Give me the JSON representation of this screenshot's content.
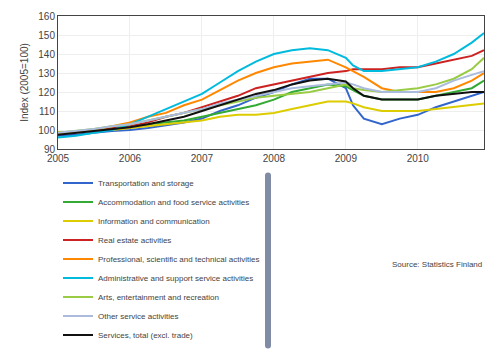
{
  "chart_data": {
    "type": "line",
    "ylabel": "Index (2005=100)",
    "annotation": "Source: Statistics Finland",
    "x": [
      2005.0,
      2005.25,
      2005.5,
      2005.75,
      2006.0,
      2006.25,
      2006.5,
      2006.75,
      2007.0,
      2007.25,
      2007.5,
      2007.75,
      2008.0,
      2008.25,
      2008.5,
      2008.75,
      2009.0,
      2009.1,
      2009.25,
      2009.5,
      2009.75,
      2010.0,
      2010.25,
      2010.5,
      2010.75,
      2010.92
    ],
    "series": [
      {
        "name": "Transportation and storage",
        "color": "#3366CC",
        "values": [
          97,
          97.5,
          98.5,
          99.5,
          100,
          101,
          102.5,
          104,
          106,
          110,
          113,
          117,
          120,
          124,
          127,
          127,
          122,
          113,
          106,
          103,
          106,
          108,
          112,
          115,
          118,
          120
        ]
      },
      {
        "name": "Accommodation and food service activities",
        "color": "#33AA33",
        "values": [
          98,
          99,
          100,
          101,
          102,
          103,
          104,
          105,
          107,
          109,
          111,
          113,
          116,
          120,
          122,
          124,
          123,
          121,
          118,
          116,
          116,
          116,
          118,
          120,
          122,
          126
        ]
      },
      {
        "name": "Information and communication",
        "color": "#DDCC00",
        "values": [
          99,
          99,
          100,
          100,
          101,
          102,
          103,
          104,
          105,
          107,
          108,
          108,
          109,
          111,
          113,
          115,
          115,
          114,
          112,
          110,
          110,
          110,
          111,
          112,
          113,
          114
        ]
      },
      {
        "name": "Real estate activities",
        "color": "#CC2222",
        "values": [
          98,
          99,
          100,
          101,
          102,
          104,
          107,
          109,
          112,
          115,
          118,
          122,
          124,
          126,
          128,
          130,
          131,
          132,
          132,
          132,
          133,
          133,
          135,
          137,
          139,
          142
        ]
      },
      {
        "name": "Professional, scientific and technical activities",
        "color": "#FF8800",
        "values": [
          98,
          99,
          100,
          102,
          104,
          107,
          109,
          113,
          116,
          121,
          126,
          130,
          133,
          135,
          136,
          137,
          133,
          131,
          128,
          122,
          120,
          120,
          120,
          122,
          126,
          130
        ]
      },
      {
        "name": "Administrative and support service activities",
        "color": "#00BBDD",
        "values": [
          96,
          97,
          98.5,
          100,
          103,
          107,
          111,
          115,
          119,
          125,
          131,
          136,
          140,
          142,
          143,
          142,
          138,
          134,
          131,
          131,
          132,
          133,
          136,
          140,
          146,
          151
        ]
      },
      {
        "name": "Arts, entertainment and recreation",
        "color": "#99CC44",
        "values": [
          98.5,
          99.5,
          100.5,
          102,
          103,
          105,
          107,
          109,
          111,
          113,
          115,
          117,
          118,
          119,
          120,
          122,
          124,
          122,
          121,
          120,
          121,
          122,
          124,
          127,
          132,
          138
        ]
      },
      {
        "name": "Other service activities",
        "color": "#AABBDD",
        "values": [
          98.5,
          99.5,
          100.5,
          102,
          103,
          105,
          107,
          109,
          111,
          114,
          116,
          118,
          120,
          122,
          123,
          124,
          125,
          124,
          122,
          120,
          120,
          120,
          122,
          126,
          129,
          131
        ]
      },
      {
        "name": "Services, total (excl. trade)",
        "color": "#111111",
        "values": [
          97.5,
          98.5,
          99.5,
          100.5,
          101.5,
          103,
          105,
          107,
          110,
          113,
          116,
          119,
          121,
          124,
          126,
          127,
          125.5,
          122,
          118,
          116,
          116,
          116,
          118,
          119,
          120,
          120
        ]
      }
    ],
    "xlim": [
      2005.0,
      2010.92
    ],
    "xticks": [
      2005,
      2006,
      2007,
      2008,
      2009,
      2010
    ],
    "ylim": [
      90,
      160
    ],
    "yticks": [
      90,
      100,
      110,
      120,
      130,
      140,
      150,
      160
    ],
    "grid": true,
    "legend": "bottom"
  }
}
